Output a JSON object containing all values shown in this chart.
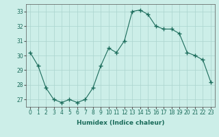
{
  "x": [
    0,
    1,
    2,
    3,
    4,
    5,
    6,
    7,
    8,
    9,
    10,
    11,
    12,
    13,
    14,
    15,
    16,
    17,
    18,
    19,
    20,
    21,
    22,
    23
  ],
  "y": [
    30.2,
    29.3,
    27.8,
    27.0,
    26.8,
    27.0,
    26.8,
    27.0,
    27.8,
    29.3,
    30.5,
    30.2,
    31.0,
    33.0,
    33.1,
    32.8,
    32.0,
    31.8,
    31.8,
    31.5,
    30.2,
    30.0,
    29.7,
    28.2
  ],
  "line_color": "#1a6b5a",
  "marker": "+",
  "marker_size": 4,
  "bg_color": "#cceee8",
  "grid_color": "#aad4ce",
  "xlabel": "Humidex (Indice chaleur)",
  "ylim": [
    26.5,
    33.5
  ],
  "xlim": [
    -0.5,
    23.5
  ],
  "yticks": [
    27,
    28,
    29,
    30,
    31,
    32,
    33
  ],
  "xticks": [
    0,
    1,
    2,
    3,
    4,
    5,
    6,
    7,
    8,
    9,
    10,
    11,
    12,
    13,
    14,
    15,
    16,
    17,
    18,
    19,
    20,
    21,
    22,
    23
  ],
  "xtick_labels": [
    "0",
    "1",
    "2",
    "3",
    "4",
    "5",
    "6",
    "7",
    "8",
    "9",
    "10",
    "11",
    "12",
    "13",
    "14",
    "15",
    "16",
    "17",
    "18",
    "19",
    "20",
    "21",
    "22",
    "23"
  ],
  "label_fontsize": 6.5,
  "tick_fontsize": 5.5
}
